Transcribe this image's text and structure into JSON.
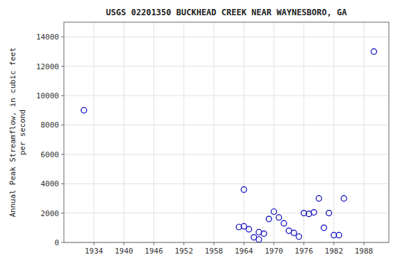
{
  "chart_data": {
    "type": "scatter",
    "title": "USGS 02201350 BUCKHEAD CREEK NEAR WAYNESBORO, GA",
    "ylabel": "Annual Peak Streamflow, in cubic feet\nper second",
    "x": [
      1932,
      1963,
      1964,
      1964,
      1965,
      1966,
      1967,
      1967,
      1968,
      1969,
      1970,
      1971,
      1972,
      1973,
      1974,
      1975,
      1976,
      1977,
      1978,
      1979,
      1980,
      1981,
      1982,
      1983,
      1984,
      1990
    ],
    "values": [
      9000,
      1050,
      1100,
      3600,
      900,
      350,
      200,
      700,
      600,
      1600,
      2100,
      1700,
      1300,
      800,
      650,
      400,
      2000,
      1950,
      2050,
      3000,
      1000,
      2000,
      500,
      500,
      3000,
      13000
    ],
    "color": "#0000bb",
    "marker": "circle",
    "xlim": [
      1928,
      1993
    ],
    "ylim": [
      0,
      15000
    ],
    "xticks": [
      1934,
      1940,
      1946,
      1952,
      1958,
      1964,
      1970,
      1976,
      1982,
      1988
    ],
    "yticks": [
      0,
      2000,
      4000,
      6000,
      8000,
      10000,
      12000,
      14000
    ],
    "grid": true
  }
}
